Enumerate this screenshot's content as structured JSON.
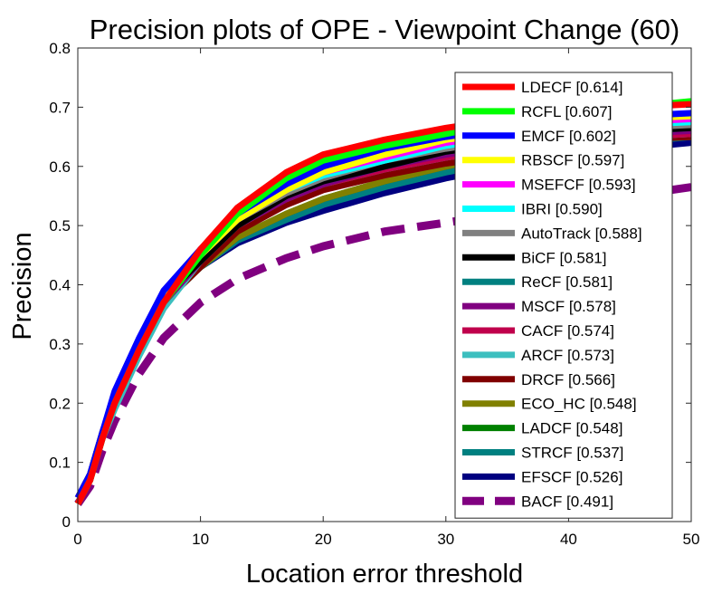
{
  "chart_data": {
    "type": "line",
    "title": "Precision plots of OPE - Viewpoint Change (60)",
    "xlabel": "Location error threshold",
    "ylabel": "Precision",
    "xlim": [
      0,
      50
    ],
    "ylim": [
      0,
      0.8
    ],
    "xticks": [
      0,
      10,
      20,
      30,
      40,
      50
    ],
    "yticks": [
      0,
      0.1,
      0.2,
      0.3,
      0.4,
      0.5,
      0.6,
      0.7,
      0.8
    ],
    "xtick_labels": [
      "0",
      "10",
      "20",
      "30",
      "40",
      "50"
    ],
    "ytick_labels": [
      "0",
      "0.1",
      "0.2",
      "0.3",
      "0.4",
      "0.5",
      "0.6",
      "0.7",
      "0.8"
    ],
    "grid": false,
    "legend_position": "right",
    "x": [
      0,
      1,
      2,
      3,
      5,
      7,
      10,
      13,
      17,
      20,
      25,
      30,
      35,
      40,
      45,
      50
    ],
    "series": [
      {
        "name": "LDECF [0.614]",
        "color": "#ff0000",
        "dashed": false,
        "values": [
          0.03,
          0.07,
          0.14,
          0.2,
          0.29,
          0.37,
          0.46,
          0.53,
          0.59,
          0.62,
          0.645,
          0.665,
          0.68,
          0.69,
          0.7,
          0.705
        ]
      },
      {
        "name": "RCFL [0.607]",
        "color": "#00ff00",
        "dashed": false,
        "values": [
          0.03,
          0.07,
          0.14,
          0.2,
          0.29,
          0.37,
          0.45,
          0.52,
          0.58,
          0.61,
          0.635,
          0.655,
          0.675,
          0.69,
          0.7,
          0.71
        ]
      },
      {
        "name": "EMCF [0.602]",
        "color": "#0000ff",
        "dashed": false,
        "values": [
          0.04,
          0.08,
          0.15,
          0.22,
          0.31,
          0.39,
          0.46,
          0.52,
          0.57,
          0.6,
          0.63,
          0.65,
          0.665,
          0.675,
          0.685,
          0.69
        ]
      },
      {
        "name": "RBSCF [0.597]",
        "color": "#ffff00",
        "dashed": false,
        "values": [
          0.04,
          0.08,
          0.15,
          0.21,
          0.3,
          0.38,
          0.45,
          0.51,
          0.56,
          0.59,
          0.62,
          0.645,
          0.66,
          0.67,
          0.68,
          0.685
        ]
      },
      {
        "name": "MSEFCF [0.593]",
        "color": "#ff00ff",
        "dashed": false,
        "values": [
          0.04,
          0.08,
          0.15,
          0.21,
          0.3,
          0.38,
          0.45,
          0.51,
          0.56,
          0.59,
          0.615,
          0.64,
          0.655,
          0.665,
          0.675,
          0.68
        ]
      },
      {
        "name": "IBRI [0.590]",
        "color": "#00ffff",
        "dashed": false,
        "values": [
          0.04,
          0.08,
          0.15,
          0.21,
          0.3,
          0.38,
          0.45,
          0.51,
          0.56,
          0.585,
          0.61,
          0.635,
          0.65,
          0.66,
          0.67,
          0.675
        ]
      },
      {
        "name": "AutoTrack [0.588]",
        "color": "#808080",
        "dashed": false,
        "values": [
          0.04,
          0.08,
          0.15,
          0.21,
          0.3,
          0.38,
          0.45,
          0.51,
          0.555,
          0.58,
          0.61,
          0.63,
          0.645,
          0.655,
          0.665,
          0.67
        ]
      },
      {
        "name": "BiCF [0.581]",
        "color": "#000000",
        "dashed": false,
        "values": [
          0.04,
          0.08,
          0.15,
          0.21,
          0.3,
          0.38,
          0.44,
          0.5,
          0.55,
          0.575,
          0.6,
          0.625,
          0.64,
          0.65,
          0.66,
          0.665
        ]
      },
      {
        "name": "ReCF [0.581]",
        "color": "#008080",
        "dashed": false,
        "values": [
          0.04,
          0.08,
          0.15,
          0.21,
          0.3,
          0.38,
          0.44,
          0.5,
          0.55,
          0.575,
          0.6,
          0.625,
          0.64,
          0.65,
          0.66,
          0.665
        ]
      },
      {
        "name": "MSCF [0.578]",
        "color": "#800080",
        "dashed": false,
        "values": [
          0.04,
          0.08,
          0.15,
          0.21,
          0.3,
          0.37,
          0.44,
          0.5,
          0.545,
          0.57,
          0.6,
          0.62,
          0.635,
          0.645,
          0.655,
          0.66
        ]
      },
      {
        "name": "CACF [0.574]",
        "color": "#c0004c",
        "dashed": false,
        "values": [
          0.03,
          0.07,
          0.14,
          0.2,
          0.29,
          0.37,
          0.44,
          0.5,
          0.545,
          0.57,
          0.595,
          0.615,
          0.63,
          0.64,
          0.65,
          0.655
        ]
      },
      {
        "name": "ARCF [0.573]",
        "color": "#3cbfbf",
        "dashed": false,
        "values": [
          0.03,
          0.07,
          0.14,
          0.19,
          0.28,
          0.36,
          0.44,
          0.5,
          0.545,
          0.57,
          0.595,
          0.615,
          0.63,
          0.64,
          0.65,
          0.655
        ]
      },
      {
        "name": "DRCF [0.566]",
        "color": "#800000",
        "dashed": false,
        "values": [
          0.04,
          0.08,
          0.15,
          0.21,
          0.3,
          0.37,
          0.43,
          0.49,
          0.535,
          0.56,
          0.585,
          0.605,
          0.62,
          0.635,
          0.645,
          0.65
        ]
      },
      {
        "name": "ECO_HC [0.548]",
        "color": "#808000",
        "dashed": false,
        "values": [
          0.04,
          0.08,
          0.15,
          0.21,
          0.3,
          0.37,
          0.43,
          0.48,
          0.52,
          0.545,
          0.575,
          0.6,
          0.62,
          0.635,
          0.645,
          0.65
        ]
      },
      {
        "name": "LADCF [0.548]",
        "color": "#008000",
        "dashed": false,
        "values": [
          0.04,
          0.08,
          0.15,
          0.21,
          0.3,
          0.37,
          0.43,
          0.48,
          0.52,
          0.545,
          0.575,
          0.6,
          0.62,
          0.635,
          0.645,
          0.655
        ]
      },
      {
        "name": "STRCF [0.537]",
        "color": "#008080",
        "dashed": false,
        "values": [
          0.04,
          0.08,
          0.15,
          0.21,
          0.3,
          0.37,
          0.43,
          0.475,
          0.51,
          0.535,
          0.565,
          0.59,
          0.61,
          0.625,
          0.64,
          0.65
        ]
      },
      {
        "name": "EFSCF [0.526]",
        "color": "#000080",
        "dashed": false,
        "values": [
          0.04,
          0.08,
          0.15,
          0.21,
          0.3,
          0.37,
          0.43,
          0.47,
          0.505,
          0.525,
          0.555,
          0.58,
          0.6,
          0.615,
          0.63,
          0.64
        ]
      },
      {
        "name": "BACF [0.491]",
        "color": "#800080",
        "dashed": true,
        "values": [
          0.03,
          0.06,
          0.12,
          0.17,
          0.25,
          0.31,
          0.37,
          0.41,
          0.445,
          0.465,
          0.49,
          0.505,
          0.52,
          0.535,
          0.55,
          0.565
        ]
      }
    ]
  }
}
